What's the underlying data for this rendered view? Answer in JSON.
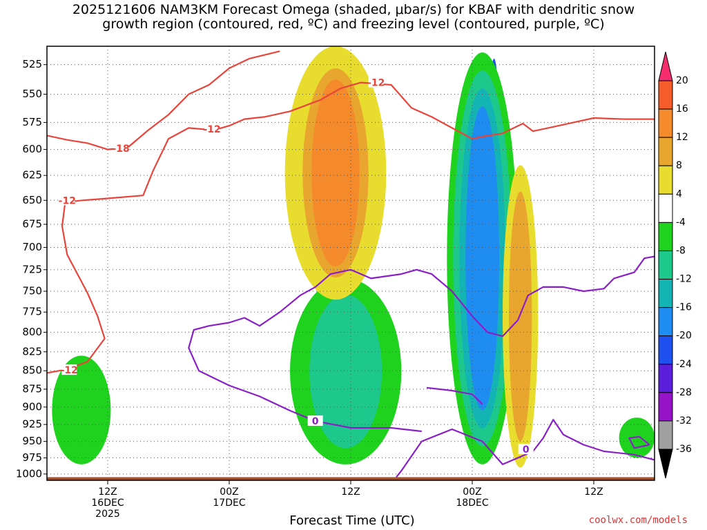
{
  "title": "2025121606 NAM3KM Forecast Omega (shaded, μbar/s) for KBAF with dendritic snow\ngrowth region (contoured, red, ºC) and freezing level (contoured, purple, ºC)",
  "credit": "coolwx.com/models",
  "chart_data": {
    "type": "heatmap",
    "title": "2025121606 NAM3KM Forecast Omega (shaded, μbar/s) for KBAF with dendritic snow growth region (contoured, red, ºC) and freezing level (contoured, purple, ºC)",
    "xlabel": "Forecast Time (UTC)",
    "ylabel": "",
    "x_range_hours_from_run": [
      0,
      60
    ],
    "y_range_mb": [
      1010,
      510
    ],
    "y_scale": "log-pressure",
    "y_ticks": [
      "525",
      "550",
      "575",
      "600",
      "625",
      "650",
      "675",
      "700",
      "725",
      "750",
      "775",
      "800",
      "825",
      "850",
      "875",
      "900",
      "925",
      "950",
      "975",
      "1000"
    ],
    "x_ticks": [
      {
        "hour": 6,
        "labels": [
          "12Z",
          "16DEC",
          "2025"
        ]
      },
      {
        "hour": 18,
        "labels": [
          "00Z",
          "17DEC"
        ]
      },
      {
        "hour": 30,
        "labels": [
          "12Z"
        ]
      },
      {
        "hour": 42,
        "labels": [
          "00Z",
          "18DEC"
        ]
      },
      {
        "hour": 54,
        "labels": [
          "12Z"
        ]
      }
    ],
    "grid": true,
    "colorbar": {
      "labels": [
        "20",
        "16",
        "12",
        "8",
        "4",
        "-4",
        "-8",
        "-12",
        "-16",
        "-20",
        "-24",
        "-28",
        "-32",
        "-36"
      ],
      "colors": [
        "#f52c6e",
        "#f55d2d",
        "#f58a2d",
        "#e8a62e",
        "#e8dc2e",
        "#ffffff",
        "#1ed21e",
        "#1ec88c",
        "#14b4b4",
        "#1e8cf0",
        "#1e50f0",
        "#5a1edc",
        "#9614c8",
        "#a0a0a0",
        "#000000"
      ]
    },
    "omega_regions": [
      {
        "name": "strong-ascent-core",
        "value_range": [
          -28,
          -20
        ],
        "hours": [
          43.5,
          44.8
        ],
        "pressure_mb": [
          800,
          520
        ]
      },
      {
        "name": "main-ascent-plume",
        "value_range": [
          -20,
          -4
        ],
        "hours": [
          39.5,
          46.5
        ],
        "pressure_mb": [
          985,
          515
        ]
      },
      {
        "name": "low-level-ascent-17dec",
        "value_range": [
          -12,
          -4
        ],
        "hours": [
          24,
          35
        ],
        "pressure_mb": [
          985,
          735
        ]
      },
      {
        "name": "low-level-ascent-16dec",
        "value_range": [
          -8,
          -4
        ],
        "hours": [
          0.5,
          6.3
        ],
        "pressure_mb": [
          985,
          830
        ]
      },
      {
        "name": "low-level-ascent-18dec-late",
        "value_range": [
          -8,
          -4
        ],
        "hours": [
          56.5,
          60
        ],
        "pressure_mb": [
          975,
          915
        ]
      },
      {
        "name": "subsidence-17dec",
        "value_range": [
          4,
          16
        ],
        "hours": [
          23.5,
          33.5
        ],
        "pressure_mb": [
          760,
          510
        ]
      },
      {
        "name": "subsidence-18dec",
        "value_range": [
          4,
          12
        ],
        "hours": [
          45,
          48.5
        ],
        "pressure_mb": [
          990,
          615
        ]
      }
    ],
    "series": [
      {
        "name": "-12",
        "color": "#e8443a",
        "points": [
          [
            0,
            853
          ],
          [
            2,
            848
          ],
          [
            4,
            838
          ],
          [
            5.7,
            808
          ],
          [
            5,
            780
          ],
          [
            4,
            752
          ],
          [
            2,
            708
          ],
          [
            1.5,
            677
          ],
          [
            1.8,
            652
          ],
          [
            3.5,
            650
          ],
          [
            6,
            648
          ],
          [
            9.5,
            645
          ],
          [
            10.5,
            620
          ],
          [
            12,
            590
          ],
          [
            14,
            580
          ],
          [
            16.5,
            582
          ],
          [
            18,
            578
          ],
          [
            19.5,
            572
          ],
          [
            21.5,
            570
          ],
          [
            24,
            565
          ],
          [
            27,
            555
          ],
          [
            29,
            545
          ],
          [
            31,
            540
          ],
          [
            34,
            542
          ],
          [
            36,
            562
          ],
          [
            38,
            570
          ],
          [
            40,
            580
          ],
          [
            42,
            590
          ],
          [
            43,
            588
          ],
          [
            45,
            585
          ],
          [
            47,
            576
          ],
          [
            48,
            583
          ],
          [
            49.5,
            580
          ],
          [
            52,
            575
          ],
          [
            54,
            571
          ],
          [
            57,
            572
          ],
          [
            60,
            572
          ]
        ]
      },
      {
        "name": "-18",
        "color": "#e8443a",
        "points": [
          [
            0,
            587
          ],
          [
            2,
            591
          ],
          [
            4,
            594
          ],
          [
            6,
            600
          ],
          [
            8,
            598
          ],
          [
            10,
            582
          ],
          [
            12,
            568
          ],
          [
            14,
            550
          ],
          [
            16,
            542
          ],
          [
            18,
            528
          ],
          [
            20,
            520
          ],
          [
            23,
            514
          ]
        ]
      },
      {
        "name": "0",
        "color": "#8a1ec8",
        "points": [
          [
            60,
            978
          ],
          [
            58,
            970
          ],
          [
            55,
            965
          ],
          [
            53,
            955
          ],
          [
            51,
            940
          ],
          [
            50,
            918
          ],
          [
            49,
            945
          ],
          [
            48,
            965
          ],
          [
            45,
            985
          ],
          [
            43,
            950
          ],
          [
            40,
            932
          ],
          [
            37,
            950
          ],
          [
            35,
            995
          ],
          [
            34.5,
            1005
          ]
        ]
      },
      {
        "name": "0",
        "color": "#8a1ec8",
        "points": [
          [
            37,
            935
          ],
          [
            34,
            930
          ],
          [
            30,
            930
          ],
          [
            26.5,
            920
          ],
          [
            24,
            905
          ],
          [
            21,
            885
          ],
          [
            18,
            870
          ],
          [
            15,
            850
          ],
          [
            14,
            820
          ],
          [
            14.5,
            797
          ],
          [
            16,
            792
          ],
          [
            18,
            788
          ],
          [
            19.5,
            782
          ],
          [
            21,
            792
          ],
          [
            23,
            775
          ],
          [
            25,
            755
          ],
          [
            26.5,
            745
          ],
          [
            28,
            730
          ],
          [
            30,
            725
          ],
          [
            32,
            735
          ],
          [
            35,
            730
          ],
          [
            36.5,
            725
          ],
          [
            38,
            730
          ],
          [
            40,
            750
          ],
          [
            42,
            780
          ],
          [
            43.5,
            800
          ],
          [
            45,
            805
          ],
          [
            46.5,
            785
          ],
          [
            47.5,
            755
          ],
          [
            49,
            745
          ],
          [
            51,
            745
          ],
          [
            53,
            750
          ],
          [
            55,
            747
          ],
          [
            56,
            735
          ],
          [
            58,
            728
          ],
          [
            59,
            712
          ],
          [
            60,
            710
          ]
        ]
      },
      {
        "name": "0",
        "color": "#8a1ec8",
        "points": [
          [
            59.5,
            955
          ],
          [
            58,
            960
          ],
          [
            57.5,
            945
          ],
          [
            58.5,
            943
          ],
          [
            59.5,
            955
          ]
        ]
      },
      {
        "name": "0",
        "color": "#8a1ec8",
        "points": [
          [
            37.5,
            873
          ],
          [
            40,
            877
          ],
          [
            42,
            882
          ],
          [
            43,
            896
          ]
        ]
      }
    ],
    "contour_labels": [
      {
        "text": "-12",
        "color": "#e8443a",
        "hour": 2,
        "mb": 650
      },
      {
        "text": "-18",
        "color": "#e8443a",
        "hour": 7.3,
        "mb": 599
      },
      {
        "text": "-12",
        "color": "#e8443a",
        "hour": 16.3,
        "mb": 581
      },
      {
        "text": "-12",
        "color": "#e8443a",
        "hour": 32.5,
        "mb": 540
      },
      {
        "text": "-12",
        "color": "#e8443a",
        "hour": 2.2,
        "mb": 849
      },
      {
        "text": "0",
        "color": "#8a1ec8",
        "hour": 26.5,
        "mb": 920
      },
      {
        "text": "0",
        "color": "#8a1ec8",
        "hour": 47.3,
        "mb": 962
      }
    ],
    "terrain": {
      "color": "#a0522d",
      "top_mb": 1005
    }
  }
}
